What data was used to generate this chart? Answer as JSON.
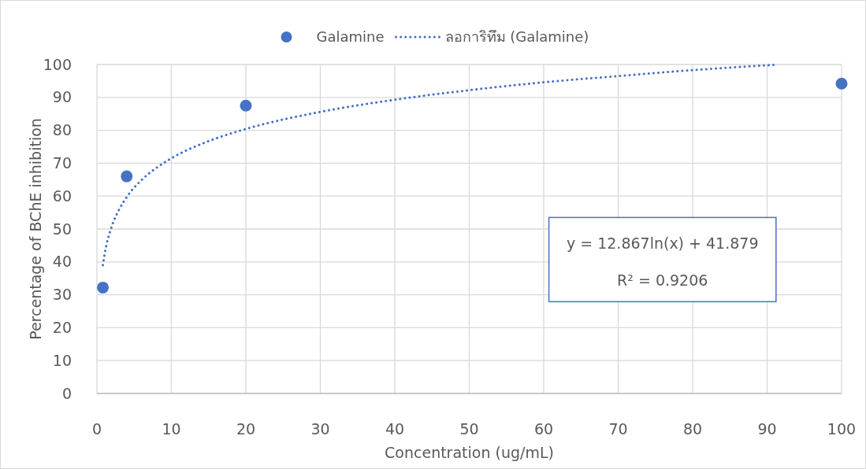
{
  "chart_data": {
    "type": "scatter",
    "xlabel": "Concentration (ug/mL)",
    "ylabel": "Percentage of BChE inhibition",
    "xlim": [
      0,
      100
    ],
    "ylim": [
      0,
      100
    ],
    "xticks": [
      0,
      10,
      20,
      30,
      40,
      50,
      60,
      70,
      80,
      90,
      100
    ],
    "yticks": [
      0,
      10,
      20,
      30,
      40,
      50,
      60,
      70,
      80,
      90,
      100
    ],
    "grid": true,
    "legend": "top",
    "annotations": [
      "y = 12.867ln(x) + 41.879",
      "R² = 0.9206"
    ],
    "series": [
      {
        "name": "Galamine",
        "color": "#4472c4",
        "marker": "circle",
        "x": [
          0.8,
          4,
          20,
          100
        ],
        "values": [
          32.2,
          66,
          87.5,
          94.2
        ]
      },
      {
        "name": "ลอการิทึม (Galamine)",
        "type": "line",
        "color": "#4472c4",
        "marker": "none",
        "line_style": "dotted",
        "x": [
          0.8,
          1,
          2,
          3,
          4,
          6,
          8,
          10,
          15,
          20,
          30,
          40,
          50,
          60,
          70,
          80,
          91
        ],
        "values": [
          39.0,
          41.9,
          50.8,
          56.0,
          59.7,
          64.9,
          68.6,
          71.5,
          76.7,
          80.4,
          85.6,
          89.3,
          92.2,
          94.6,
          96.5,
          98.3,
          99.9
        ]
      }
    ]
  }
}
